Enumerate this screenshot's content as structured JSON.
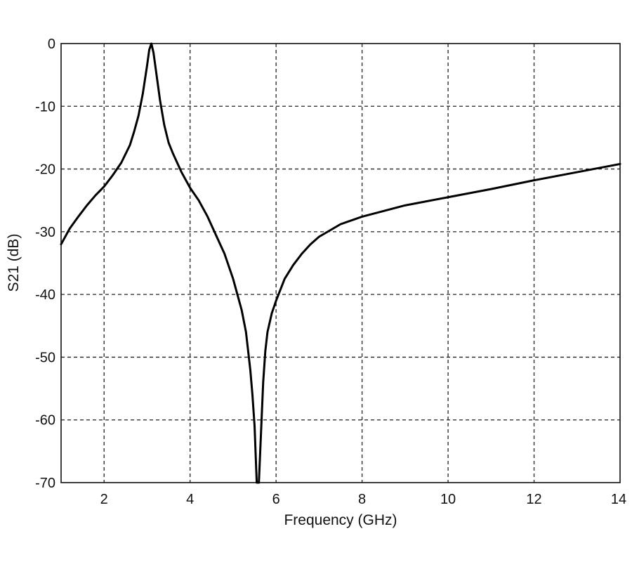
{
  "chart_data": {
    "type": "line",
    "title": "",
    "xlabel": "Frequency (GHz)",
    "ylabel": "S21 (dB)",
    "xlim": [
      1,
      14
    ],
    "ylim": [
      -70,
      0
    ],
    "xticks": [
      2,
      4,
      6,
      8,
      10,
      12,
      14
    ],
    "yticks": [
      0,
      -10,
      -20,
      -30,
      -40,
      -50,
      -60,
      -70
    ],
    "grid": true,
    "grid_style": "dashed",
    "line_color": "#000000",
    "series": [
      {
        "x": [
          1.0,
          1.2,
          1.4,
          1.6,
          1.8,
          2.0,
          2.2,
          2.4,
          2.6,
          2.7,
          2.8,
          2.9,
          3.0,
          3.05,
          3.1,
          3.15,
          3.2,
          3.3,
          3.4,
          3.5,
          3.6,
          3.8,
          4.0,
          4.2,
          4.4,
          4.6,
          4.8,
          5.0,
          5.2,
          5.3,
          5.4,
          5.45,
          5.5,
          5.55,
          5.6,
          5.65,
          5.7,
          5.75,
          5.8,
          5.9,
          6.0,
          6.2,
          6.4,
          6.6,
          6.8,
          7.0,
          7.5,
          8.0,
          9.0,
          10.0,
          11.0,
          12.0,
          13.0,
          14.0
        ],
        "y": [
          -32.0,
          -29.5,
          -27.6,
          -25.8,
          -24.2,
          -22.8,
          -21.0,
          -19.0,
          -16.2,
          -14.0,
          -11.5,
          -8.0,
          -3.5,
          -1.0,
          0.0,
          -1.5,
          -4.0,
          -9.0,
          -13.0,
          -15.8,
          -17.5,
          -20.5,
          -23.0,
          -25.0,
          -27.5,
          -30.5,
          -33.5,
          -37.5,
          -42.5,
          -46.0,
          -52.0,
          -56.0,
          -61.0,
          -70.0,
          -70.0,
          -62.0,
          -54.0,
          -49.0,
          -46.0,
          -43.0,
          -41.0,
          -37.5,
          -35.3,
          -33.5,
          -32.0,
          -30.8,
          -28.8,
          -27.6,
          -25.8,
          -24.5,
          -23.2,
          -21.8,
          -20.5,
          -19.2
        ]
      }
    ]
  }
}
